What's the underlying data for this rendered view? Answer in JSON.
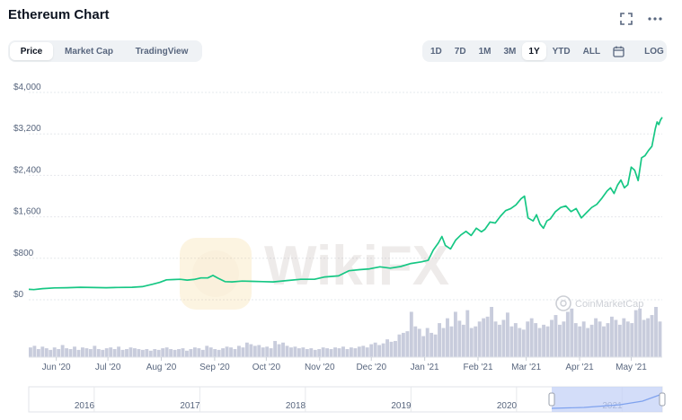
{
  "header": {
    "title": "Ethereum Chart",
    "icons": [
      "fullscreen-icon",
      "more-icon"
    ]
  },
  "view_tabs": [
    {
      "label": "Price",
      "active": true
    },
    {
      "label": "Market Cap",
      "active": false
    },
    {
      "label": "TradingView",
      "active": false
    }
  ],
  "range_tabs": [
    {
      "label": "1D",
      "active": false
    },
    {
      "label": "7D",
      "active": false
    },
    {
      "label": "1M",
      "active": false
    },
    {
      "label": "3M",
      "active": false
    },
    {
      "label": "1Y",
      "active": true
    },
    {
      "label": "YTD",
      "active": false
    },
    {
      "label": "ALL",
      "active": false
    }
  ],
  "log_label": "LOG",
  "calendar_icon": "calendar-icon",
  "watermark": {
    "cmc": "CoinMarketCap",
    "wikifx": "WikiFX"
  },
  "colors": {
    "line": "#16c784",
    "volume": "#c8ccdc",
    "navigator": "#c4d2f7",
    "grid": "#e6e8ec"
  },
  "chart_data": {
    "type": "line",
    "title": "Ethereum Chart",
    "xlabel": "",
    "ylabel": "",
    "ylim": [
      0,
      4000
    ],
    "y_ticks": [
      "$0",
      "$800",
      "$1,600",
      "$2,400",
      "$3,200",
      "$4,000"
    ],
    "y_tick_values": [
      0,
      800,
      1600,
      2400,
      3200,
      4000
    ],
    "x_tick_labels": [
      "Jun '20",
      "Jul '20",
      "Aug '20",
      "Sep '20",
      "Oct '20",
      "Nov '20",
      "Dec '20",
      "Jan '21",
      "Feb '21",
      "Mar '21",
      "Apr '21",
      "May '21"
    ],
    "x_tick_days": [
      16,
      46,
      77,
      108,
      138,
      169,
      199,
      230,
      261,
      289,
      320,
      350
    ],
    "grid": true,
    "series": [
      {
        "values_by_day": [
          [
            0,
            200
          ],
          [
            3,
            195
          ],
          [
            8,
            215
          ],
          [
            15,
            228
          ],
          [
            22,
            232
          ],
          [
            30,
            240
          ],
          [
            38,
            236
          ],
          [
            45,
            232
          ],
          [
            52,
            238
          ],
          [
            60,
            240
          ],
          [
            66,
            252
          ],
          [
            72,
            300
          ],
          [
            76,
            335
          ],
          [
            80,
            385
          ],
          [
            84,
            390
          ],
          [
            88,
            395
          ],
          [
            92,
            380
          ],
          [
            96,
            392
          ],
          [
            100,
            420
          ],
          [
            104,
            420
          ],
          [
            107,
            470
          ],
          [
            110,
            415
          ],
          [
            114,
            350
          ],
          [
            118,
            345
          ],
          [
            124,
            360
          ],
          [
            130,
            355
          ],
          [
            136,
            350
          ],
          [
            142,
            345
          ],
          [
            150,
            370
          ],
          [
            158,
            395
          ],
          [
            166,
            395
          ],
          [
            172,
            440
          ],
          [
            180,
            460
          ],
          [
            186,
            560
          ],
          [
            192,
            580
          ],
          [
            198,
            595
          ],
          [
            204,
            635
          ],
          [
            210,
            610
          ],
          [
            216,
            640
          ],
          [
            222,
            700
          ],
          [
            228,
            730
          ],
          [
            232,
            760
          ],
          [
            235,
            960
          ],
          [
            238,
            1100
          ],
          [
            240,
            1220
          ],
          [
            242,
            1050
          ],
          [
            245,
            980
          ],
          [
            248,
            1150
          ],
          [
            251,
            1250
          ],
          [
            254,
            1320
          ],
          [
            257,
            1240
          ],
          [
            260,
            1380
          ],
          [
            263,
            1310
          ],
          [
            265,
            1360
          ],
          [
            268,
            1500
          ],
          [
            271,
            1480
          ],
          [
            274,
            1610
          ],
          [
            277,
            1720
          ],
          [
            280,
            1760
          ],
          [
            283,
            1830
          ],
          [
            286,
            1950
          ],
          [
            288,
            2000
          ],
          [
            290,
            1580
          ],
          [
            293,
            1520
          ],
          [
            295,
            1640
          ],
          [
            297,
            1460
          ],
          [
            299,
            1380
          ],
          [
            301,
            1520
          ],
          [
            303,
            1560
          ],
          [
            306,
            1700
          ],
          [
            309,
            1780
          ],
          [
            312,
            1810
          ],
          [
            315,
            1700
          ],
          [
            318,
            1760
          ],
          [
            321,
            1580
          ],
          [
            324,
            1680
          ],
          [
            327,
            1780
          ],
          [
            330,
            1840
          ],
          [
            333,
            1960
          ],
          [
            336,
            2100
          ],
          [
            338,
            2160
          ],
          [
            340,
            2050
          ],
          [
            342,
            2210
          ],
          [
            344,
            2310
          ],
          [
            346,
            2160
          ],
          [
            348,
            2220
          ],
          [
            350,
            2560
          ],
          [
            352,
            2500
          ],
          [
            354,
            2300
          ],
          [
            356,
            2740
          ],
          [
            358,
            2780
          ],
          [
            360,
            2880
          ],
          [
            362,
            2960
          ],
          [
            364,
            3300
          ],
          [
            365,
            3430
          ],
          [
            366,
            3380
          ],
          [
            367,
            3470
          ],
          [
            368,
            3520
          ]
        ]
      }
    ],
    "volume": [
      12,
      14,
      10,
      13,
      11,
      9,
      12,
      10,
      15,
      11,
      10,
      13,
      9,
      12,
      11,
      10,
      14,
      10,
      9,
      11,
      12,
      10,
      13,
      9,
      10,
      12,
      11,
      10,
      9,
      10,
      8,
      10,
      9,
      11,
      12,
      10,
      9,
      10,
      11,
      8,
      10,
      12,
      11,
      9,
      14,
      12,
      10,
      9,
      11,
      13,
      12,
      10,
      14,
      12,
      18,
      16,
      14,
      15,
      12,
      13,
      11,
      20,
      16,
      18,
      14,
      12,
      13,
      11,
      12,
      10,
      11,
      9,
      10,
      12,
      11,
      10,
      12,
      11,
      13,
      10,
      12,
      11,
      13,
      14,
      12,
      16,
      18,
      15,
      17,
      22,
      19,
      20,
      28,
      30,
      32,
      56,
      38,
      35,
      26,
      36,
      30,
      28,
      42,
      36,
      48,
      38,
      56,
      45,
      40,
      58,
      36,
      38,
      44,
      48,
      50,
      62,
      44,
      40,
      46,
      55,
      38,
      42,
      36,
      34,
      44,
      48,
      42,
      36,
      40,
      38,
      46,
      52,
      40,
      44,
      56,
      60,
      42,
      38,
      44,
      36,
      40,
      48,
      44,
      38,
      42,
      50,
      46,
      40,
      48,
      44,
      42,
      58,
      60,
      46,
      48,
      52,
      62,
      44
    ],
    "navigator": {
      "labels": [
        "2016",
        "2017",
        "2018",
        "2019",
        "2020",
        "2021"
      ]
    }
  }
}
